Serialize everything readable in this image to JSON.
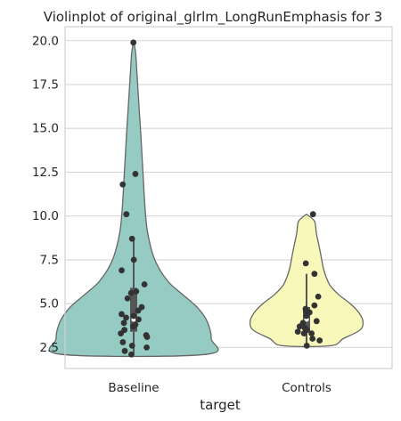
{
  "chart_data": {
    "type": "violin",
    "title": "Violinplot of original_glrlm_LongRunEmphasis for 3",
    "xlabel": "target",
    "ylabel": "",
    "categories": [
      "Baseline",
      "Controls"
    ],
    "ylim": [
      1.3,
      20.8
    ],
    "yticks": [
      2.5,
      5.0,
      7.5,
      10.0,
      12.5,
      15.0,
      17.5,
      20.0
    ],
    "ytick_labels": [
      "2.5",
      "5.0",
      "7.5",
      "10.0",
      "12.5",
      "15.0",
      "17.5",
      "20.0"
    ],
    "grid": "horizontal",
    "colors": {
      "Baseline": "#95cbc2",
      "Controls": "#f8f8ba",
      "outline": "#666666",
      "points": "#333333",
      "box": "#555555",
      "grid": "#d5d5d5",
      "frame": "#d0d0d0"
    },
    "series": [
      {
        "name": "Baseline",
        "points": [
          19.9,
          12.4,
          11.8,
          10.1,
          8.7,
          7.5,
          6.9,
          6.1,
          5.7,
          5.6,
          5.3,
          4.8,
          4.6,
          4.4,
          4.3,
          4.2,
          4.1,
          3.9,
          3.8,
          3.7,
          3.5,
          3.3,
          3.2,
          3.1,
          2.8,
          2.6,
          2.5,
          2.3,
          2.1
        ],
        "box": {
          "whisker_low": 2.1,
          "q1": 3.4,
          "median": 4.1,
          "q3": 5.9,
          "whisker_high": 8.7
        },
        "density": [
          [
            2.1,
            0.255
          ],
          [
            3.0,
            0.275
          ],
          [
            4.0,
            0.26
          ],
          [
            4.8,
            0.225
          ],
          [
            5.5,
            0.175
          ],
          [
            6.3,
            0.12
          ],
          [
            7.5,
            0.075
          ],
          [
            9.0,
            0.05
          ],
          [
            10.5,
            0.04
          ],
          [
            12.5,
            0.033
          ],
          [
            14.5,
            0.026
          ],
          [
            16.5,
            0.018
          ],
          [
            18.3,
            0.011
          ],
          [
            19.3,
            0.007
          ],
          [
            20.0,
            0.0
          ]
        ]
      },
      {
        "name": "Controls",
        "points": [
          10.1,
          7.3,
          6.7,
          5.4,
          4.9,
          4.7,
          4.6,
          4.5,
          4.3,
          4.0,
          3.9,
          3.7,
          3.6,
          3.5,
          3.4,
          3.3,
          3.3,
          3.0,
          2.9,
          2.6
        ],
        "box": {
          "whisker_low": 2.6,
          "q1": 3.4,
          "median": 4.1,
          "q3": 4.8,
          "whisker_high": 6.7
        },
        "density": [
          [
            2.6,
            0.085
          ],
          [
            3.0,
            0.13
          ],
          [
            3.5,
            0.19
          ],
          [
            4.0,
            0.2
          ],
          [
            4.5,
            0.185
          ],
          [
            5.0,
            0.155
          ],
          [
            5.5,
            0.115
          ],
          [
            6.0,
            0.085
          ],
          [
            6.5,
            0.07
          ],
          [
            7.0,
            0.06
          ],
          [
            8.0,
            0.048
          ],
          [
            9.0,
            0.035
          ],
          [
            9.7,
            0.028
          ],
          [
            10.1,
            0.0
          ]
        ]
      }
    ]
  }
}
